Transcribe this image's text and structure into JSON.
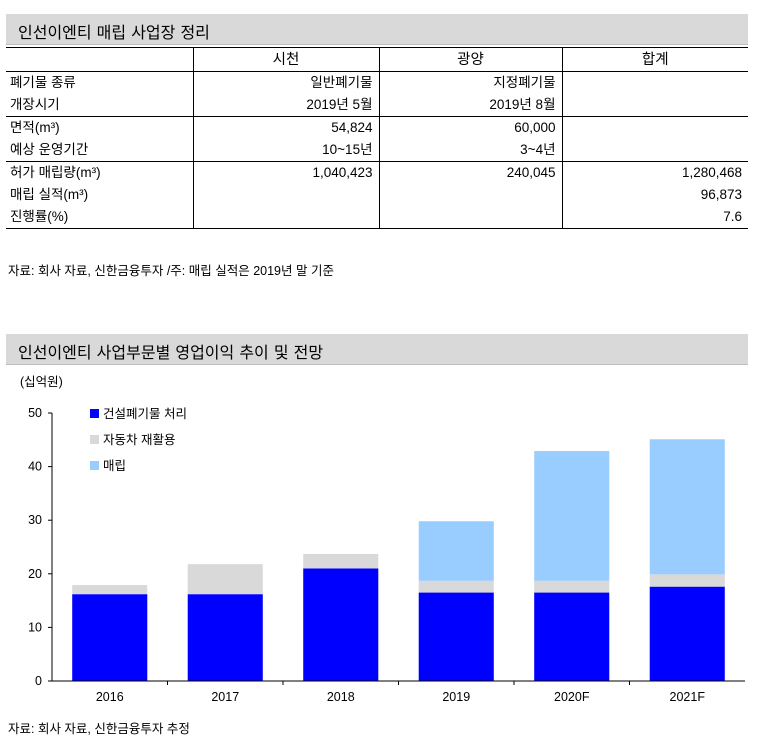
{
  "table_section": {
    "title": "인선이엔티 매립 사업장 정리",
    "headers": [
      "",
      "시천",
      "광양",
      "합계"
    ],
    "rows": [
      {
        "label": "폐기물 종류",
        "cells": [
          "일반폐기물",
          "지정폐기물",
          ""
        ]
      },
      {
        "label": "개장시기",
        "cells": [
          "2019년 5월",
          "2019년 8월",
          ""
        ]
      },
      {
        "label": "면적(m³)",
        "cells": [
          "54,824",
          "60,000",
          ""
        ]
      },
      {
        "label": "예상 운영기간",
        "cells": [
          "10~15년",
          "3~4년",
          ""
        ]
      },
      {
        "label": "허가 매립량(m³)",
        "cells": [
          "1,040,423",
          "240,045",
          "1,280,468"
        ]
      },
      {
        "label": "매립 실적(m³)",
        "cells": [
          "",
          "",
          "96,873"
        ]
      },
      {
        "label": "진행률(%)",
        "cells": [
          "",
          "",
          "7.6"
        ]
      }
    ],
    "source": "자료: 회사 자료, 신한금융투자 /주: 매립 실적은 2019년 말 기준"
  },
  "chart_section": {
    "title": "인선이엔티 사업부문별 영업이익 추이 및 전망",
    "source": "자료: 회사 자료, 신한금융투자 추정"
  },
  "chart_data": {
    "type": "bar",
    "stacked": true,
    "unit_label": "(십억원)",
    "categories": [
      "2016",
      "2017",
      "2018",
      "2019",
      "2020F",
      "2021F"
    ],
    "series": [
      {
        "name": "건설폐기물 처리",
        "color": "#0000ff",
        "values": [
          16.2,
          16.2,
          21.0,
          16.5,
          16.5,
          17.6
        ]
      },
      {
        "name": "자동차 재활용",
        "color": "#d9d9d9",
        "values": [
          1.7,
          5.6,
          2.7,
          2.2,
          2.2,
          2.3
        ]
      },
      {
        "name": "매립",
        "color": "#99ccff",
        "values": [
          0,
          0,
          0,
          11.1,
          24.2,
          25.2
        ]
      }
    ],
    "ylim": [
      0,
      50
    ],
    "yticks": [
      0,
      10,
      20,
      30,
      40,
      50
    ],
    "legend_position": "top-left"
  }
}
